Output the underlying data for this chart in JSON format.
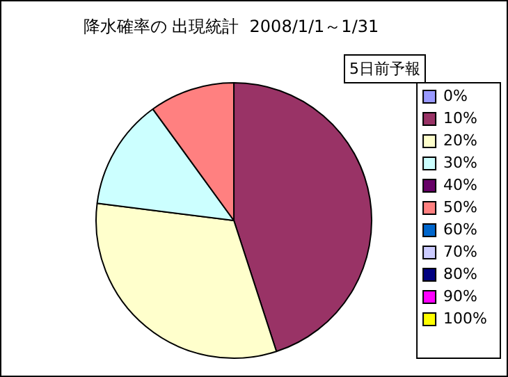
{
  "chart_data": {
    "type": "pie",
    "title": "降水確率の 出現統計  2008/1/1～1/31",
    "legend_title": "5日前予報",
    "legend": "right",
    "categories": [
      "0%",
      "10%",
      "20%",
      "30%",
      "40%",
      "50%",
      "60%",
      "70%",
      "80%",
      "90%",
      "100%"
    ],
    "values": [
      0,
      45,
      32,
      13,
      0,
      10,
      0,
      0,
      0,
      0,
      0
    ],
    "colors": [
      "#9999ff",
      "#993366",
      "#ffffcc",
      "#ccffff",
      "#660066",
      "#ff8080",
      "#0066cc",
      "#ccccff",
      "#000080",
      "#ff00ff",
      "#ffff00"
    ]
  }
}
